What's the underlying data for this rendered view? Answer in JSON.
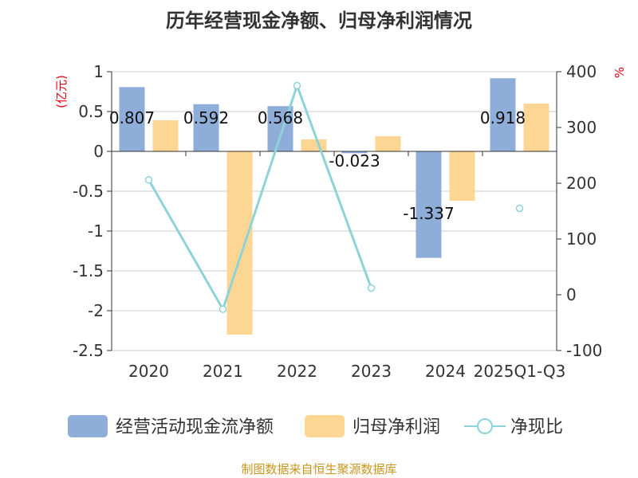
{
  "source_note": "制图数据来自恒生聚源数据库",
  "colors": {
    "bar_ocf": "#8eadd8",
    "bar_profit": "#fdd694",
    "line_ratio": "#8ed3d8",
    "unit_label": "#e60012",
    "axis": "#333333",
    "grid": "#cccccc",
    "text": "#333333",
    "source": "#c8961e"
  },
  "chart_data": {
    "type": "bar",
    "title": "历年经营现金净额、归母净利润情况",
    "categories": [
      "2020",
      "2021",
      "2022",
      "2023",
      "2024",
      "2025Q1-Q3"
    ],
    "y_left": {
      "unit_label": "(亿元)",
      "ylim": [
        -2.5,
        1
      ],
      "ticks": [
        1,
        0.5,
        0,
        -0.5,
        -1,
        -1.5,
        -2,
        -2.5
      ],
      "tick_labels": [
        "1",
        "0.5",
        "0",
        "-0.5",
        "-1",
        "-1.5",
        "-2",
        "-2.5"
      ]
    },
    "y_right": {
      "unit_label": "%",
      "ylim": [
        -100,
        400
      ],
      "ticks": [
        400,
        300,
        200,
        100,
        0,
        -100
      ],
      "tick_labels": [
        "400",
        "300",
        "200",
        "100",
        "0",
        "-100"
      ]
    },
    "series": [
      {
        "name": "经营活动现金流净额",
        "kind": "bar",
        "axis": "left",
        "values": [
          0.807,
          0.592,
          0.568,
          -0.023,
          -1.337,
          0.918
        ],
        "data_labels": [
          "0.807",
          "0.592",
          "0.568",
          "-0.023",
          "-1.337",
          "0.918"
        ]
      },
      {
        "name": "归母净利润",
        "kind": "bar",
        "axis": "left",
        "values": [
          0.39,
          -2.3,
          0.15,
          0.19,
          -0.62,
          0.6
        ]
      },
      {
        "name": "净现比",
        "kind": "line",
        "axis": "right",
        "values": [
          206,
          -26,
          375,
          12,
          null,
          155
        ]
      }
    ],
    "grid": true,
    "legend_position": "bottom"
  }
}
